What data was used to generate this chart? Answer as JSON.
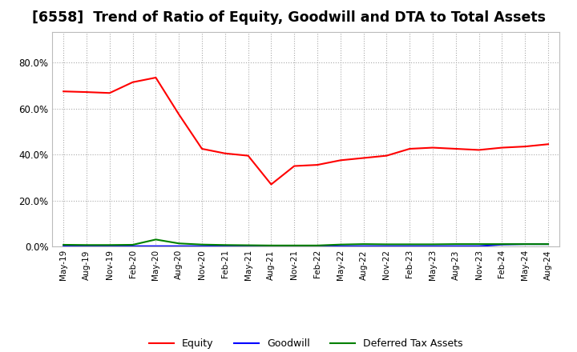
{
  "title": "[6558]  Trend of Ratio of Equity, Goodwill and DTA to Total Assets",
  "x_labels": [
    "May-19",
    "Aug-19",
    "Nov-19",
    "Feb-20",
    "May-20",
    "Aug-20",
    "Nov-20",
    "Feb-21",
    "May-21",
    "Aug-21",
    "Nov-21",
    "Feb-22",
    "May-22",
    "Aug-22",
    "Nov-22",
    "Feb-23",
    "May-23",
    "Aug-23",
    "Nov-23",
    "Feb-24",
    "May-24",
    "Aug-24"
  ],
  "equity": [
    0.675,
    0.672,
    0.668,
    0.715,
    0.735,
    0.575,
    0.425,
    0.405,
    0.395,
    0.27,
    0.35,
    0.355,
    0.375,
    0.385,
    0.395,
    0.425,
    0.43,
    0.425,
    0.42,
    0.43,
    0.435,
    0.445
  ],
  "goodwill": [
    0.001,
    0.001,
    0.001,
    0.001,
    0.001,
    0.001,
    0.001,
    0.001,
    0.001,
    0.001,
    0.001,
    0.001,
    0.001,
    0.001,
    0.001,
    0.001,
    0.001,
    0.001,
    0.001,
    0.008,
    0.01,
    0.01
  ],
  "dta": [
    0.007,
    0.006,
    0.006,
    0.007,
    0.03,
    0.013,
    0.008,
    0.006,
    0.005,
    0.004,
    0.004,
    0.004,
    0.008,
    0.01,
    0.009,
    0.009,
    0.009,
    0.01,
    0.01,
    0.01,
    0.01,
    0.01
  ],
  "equity_color": "#FF0000",
  "goodwill_color": "#0000FF",
  "dta_color": "#008000",
  "background_color": "#FFFFFF",
  "plot_bg_color": "#FFFFFF",
  "grid_color": "#AAAAAA",
  "ylim": [
    0.0,
    0.935
  ],
  "yticks": [
    0.0,
    0.2,
    0.4,
    0.6,
    0.8
  ],
  "title_fontsize": 12.5,
  "legend_labels": [
    "Equity",
    "Goodwill",
    "Deferred Tax Assets"
  ]
}
